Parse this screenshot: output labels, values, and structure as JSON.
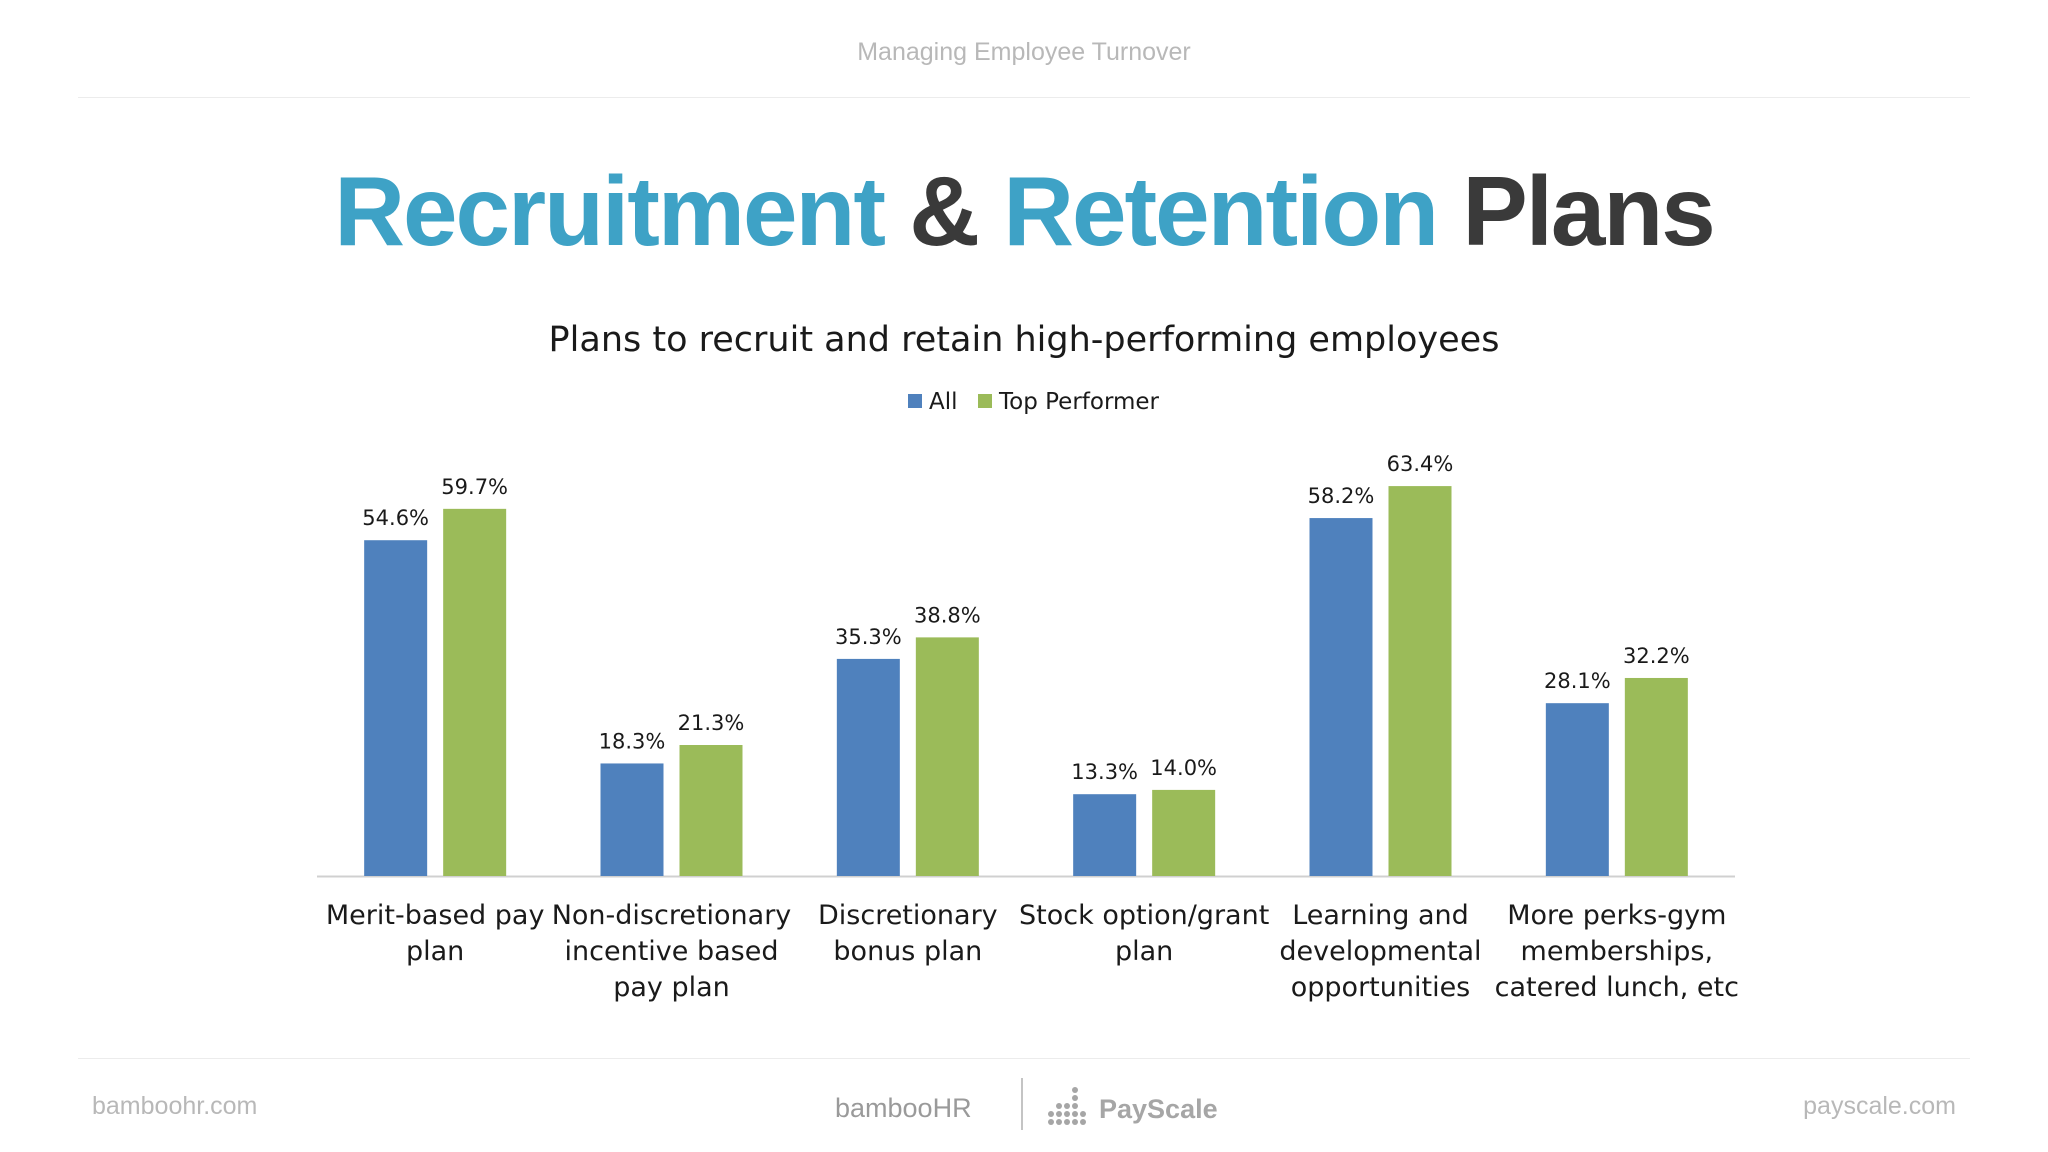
{
  "header": {
    "text": "Managing Employee Turnover"
  },
  "title": {
    "part1": "Recruitment",
    "part2": "&",
    "part3": "Retention",
    "part4": "Plans"
  },
  "chart_data": {
    "type": "bar",
    "title": "Plans to recruit and retain high-performing employees",
    "legend_position": "top-center",
    "grid": false,
    "ylim": [
      0,
      70
    ],
    "categories": [
      [
        "Merit-based pay",
        "plan"
      ],
      [
        "Non-discretionary",
        "incentive based",
        "pay plan"
      ],
      [
        "Discretionary",
        "bonus plan"
      ],
      [
        "Stock option/grant",
        "plan"
      ],
      [
        "Learning and",
        "developmental",
        "opportunities"
      ],
      [
        "More perks-gym",
        "memberships,",
        "catered lunch, etc"
      ]
    ],
    "series": [
      {
        "name": "All",
        "color": "#4f81bd",
        "values": [
          54.6,
          18.3,
          35.3,
          13.3,
          58.2,
          28.1
        ],
        "labels": [
          "54.6%",
          "18.3%",
          "35.3%",
          "13.3%",
          "58.2%",
          "28.1%"
        ]
      },
      {
        "name": "Top Performer",
        "color": "#9bbb59",
        "values": [
          59.7,
          21.3,
          38.8,
          14.0,
          63.4,
          32.2
        ],
        "labels": [
          "59.7%",
          "21.3%",
          "38.8%",
          "14.0%",
          "63.4%",
          "32.2%"
        ]
      }
    ]
  },
  "footer": {
    "left": "bamboohr.com",
    "right": "payscale.com",
    "bamboo_logo": "bambooHR",
    "payscale_logo": "PayScale"
  }
}
